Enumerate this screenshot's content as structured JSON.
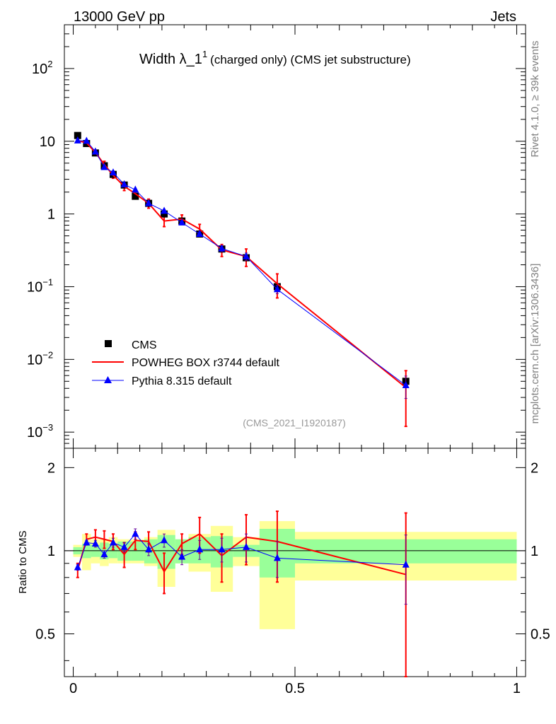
{
  "header": {
    "left": "13000 GeV pp",
    "right": "Jets"
  },
  "side_labels": {
    "rivet": "Rivet 4.1.0, ≥ 39k events",
    "mcplots": "mcplots.cern.ch [arXiv:1306.3436]"
  },
  "colors": {
    "cms": "#000000",
    "powheg": "#ff0000",
    "pythia": "#0000ff",
    "band_green": "#99ff99",
    "band_yellow": "#ffff99",
    "error_purple": "#660099"
  },
  "chart_data": {
    "type": "line",
    "title": "Width λ_1",
    "title_sup": "1",
    "title_suffix": "(charged only) (CMS jet substructure)",
    "watermark": "(CMS_2021_I1920187)",
    "xlabel": "",
    "xlim": [
      -0.02,
      1.02
    ],
    "main": {
      "yscale": "log",
      "ylim": [
        0.0006,
        400
      ],
      "ytick_labels": [
        {
          "value": 100,
          "base": "10",
          "exp": "2"
        },
        {
          "value": 10,
          "base": "10",
          "exp": ""
        },
        {
          "value": 1,
          "base": "1",
          "exp": ""
        },
        {
          "value": 0.1,
          "base": "10",
          "exp": "−1"
        },
        {
          "value": 0.01,
          "base": "10",
          "exp": "−2"
        },
        {
          "value": 0.001,
          "base": "10",
          "exp": "−3"
        }
      ]
    },
    "ratio": {
      "ylabel": "Ratio to CMS",
      "ylim": [
        0.35,
        2.35
      ],
      "ytick_labels": [
        "0.5",
        "1",
        "2"
      ],
      "ytick_values": [
        0.5,
        1,
        2
      ]
    },
    "xtick_labels": [
      "0",
      "0.5",
      "1"
    ],
    "xtick_values": [
      0,
      0.5,
      1
    ],
    "x": [
      0.01,
      0.03,
      0.05,
      0.07,
      0.09,
      0.115,
      0.14,
      0.17,
      0.205,
      0.245,
      0.285,
      0.335,
      0.39,
      0.46,
      0.75
    ],
    "bin_edges": [
      0,
      0.02,
      0.04,
      0.06,
      0.08,
      0.1,
      0.13,
      0.16,
      0.19,
      0.23,
      0.26,
      0.31,
      0.36,
      0.42,
      0.5,
      1.0
    ],
    "legend": [
      {
        "name": "CMS",
        "marker": "square"
      },
      {
        "name": "POWHEG BOX r3744 default",
        "marker": "line"
      },
      {
        "name": "Pythia 8.315 default",
        "marker": "triangle"
      }
    ],
    "series": [
      {
        "name": "CMS",
        "values": [
          12.0,
          9.3,
          6.9,
          4.6,
          3.5,
          2.5,
          1.75,
          1.4,
          1.0,
          0.8,
          0.53,
          0.33,
          0.25,
          0.1,
          0.005
        ]
      },
      {
        "name": "POWHEG BOX r3744 default",
        "values": [
          10.2,
          9.5,
          7.0,
          4.8,
          3.4,
          2.4,
          1.9,
          1.4,
          0.8,
          0.85,
          0.62,
          0.32,
          0.26,
          0.11,
          0.0041
        ],
        "errors": [
          0.4,
          0.4,
          0.5,
          0.5,
          0.3,
          0.3,
          0.2,
          0.2,
          0.13,
          0.12,
          0.1,
          0.06,
          0.07,
          0.04,
          0.0029
        ]
      },
      {
        "name": "Pythia 8.315 default",
        "values": [
          10.2,
          10.1,
          7.2,
          4.4,
          3.7,
          2.55,
          2.15,
          1.4,
          1.1,
          0.76,
          0.53,
          0.335,
          0.26,
          0.092,
          0.0044
        ],
        "errors": [
          0.2,
          0.2,
          0.2,
          0.15,
          0.12,
          0.08,
          0.08,
          0.06,
          0.06,
          0.05,
          0.04,
          0.03,
          0.03,
          0.012,
          0.0015
        ]
      }
    ],
    "ratios": {
      "powheg": [
        0.85,
        1.1,
        1.12,
        1.1,
        1.08,
        0.97,
        1.09,
        1.08,
        0.84,
        1.06,
        1.15,
        0.96,
        1.12,
        1.08,
        0.82
      ],
      "powheg_err": [
        0.05,
        0.05,
        0.07,
        0.08,
        0.07,
        0.1,
        0.08,
        0.09,
        0.14,
        0.09,
        0.17,
        0.19,
        0.23,
        0.31,
        0.55
      ],
      "pythia": [
        0.87,
        1.07,
        1.06,
        0.97,
        1.07,
        1.03,
        1.15,
        1.01,
        1.09,
        0.95,
        1.01,
        1.01,
        1.03,
        0.94,
        0.89
      ],
      "pythia_err": [
        0.02,
        0.02,
        0.03,
        0.03,
        0.04,
        0.04,
        0.05,
        0.05,
        0.06,
        0.06,
        0.08,
        0.1,
        0.12,
        0.14,
        0.25
      ]
    },
    "ratio_bands": {
      "green": [
        [
          0.97,
          1.03
        ],
        [
          0.94,
          1.06
        ],
        [
          0.95,
          1.05
        ],
        [
          0.93,
          1.07
        ],
        [
          0.94,
          1.06
        ],
        [
          0.92,
          1.08
        ],
        [
          0.92,
          1.08
        ],
        [
          0.9,
          1.1
        ],
        [
          0.86,
          1.14
        ],
        [
          0.9,
          1.1
        ],
        [
          0.9,
          1.12
        ],
        [
          0.87,
          1.13
        ],
        [
          0.95,
          1.05
        ],
        [
          0.8,
          1.2
        ],
        [
          0.9,
          1.1
        ]
      ],
      "yellow": [
        [
          0.95,
          1.05
        ],
        [
          0.85,
          1.15
        ],
        [
          0.9,
          1.1
        ],
        [
          0.88,
          1.1
        ],
        [
          0.9,
          1.12
        ],
        [
          0.9,
          1.1
        ],
        [
          0.9,
          1.1
        ],
        [
          0.88,
          1.12
        ],
        [
          0.74,
          1.19
        ],
        [
          0.9,
          1.1
        ],
        [
          0.84,
          1.15
        ],
        [
          0.71,
          1.23
        ],
        [
          0.88,
          1.12
        ],
        [
          0.52,
          1.28
        ],
        [
          0.78,
          1.17
        ]
      ]
    }
  }
}
